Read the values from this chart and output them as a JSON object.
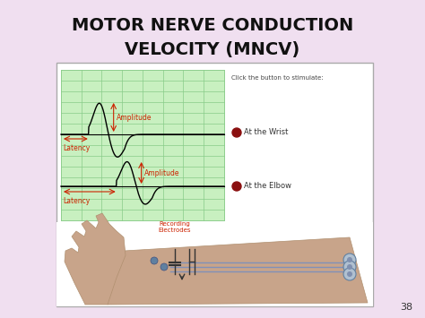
{
  "title_line1": "MOTOR NERVE CONDUCTION",
  "title_line2": "VELOCITY (MNCV)",
  "title_fontsize": 14,
  "title_color": "#111111",
  "bg_color": "#f0dff0",
  "box_bg": "#ffffff",
  "grid_bg": "#c8f0c0",
  "grid_line_color": "#88cc88",
  "annotation_color": "#cc2200",
  "click_text": "Click the button to stimulate:",
  "wrist_label": "At the Wrist",
  "elbow_label": "At the Elbow",
  "amplitude_label": "Amplitude",
  "latency_label": "Latency",
  "recording_label": "Recording\nElectrodes",
  "page_number": "38",
  "arm_color": "#c8a48a",
  "arm_edge": "#b09070",
  "wire_color": "#8090b8",
  "dark_red_circle": "#8B1010"
}
